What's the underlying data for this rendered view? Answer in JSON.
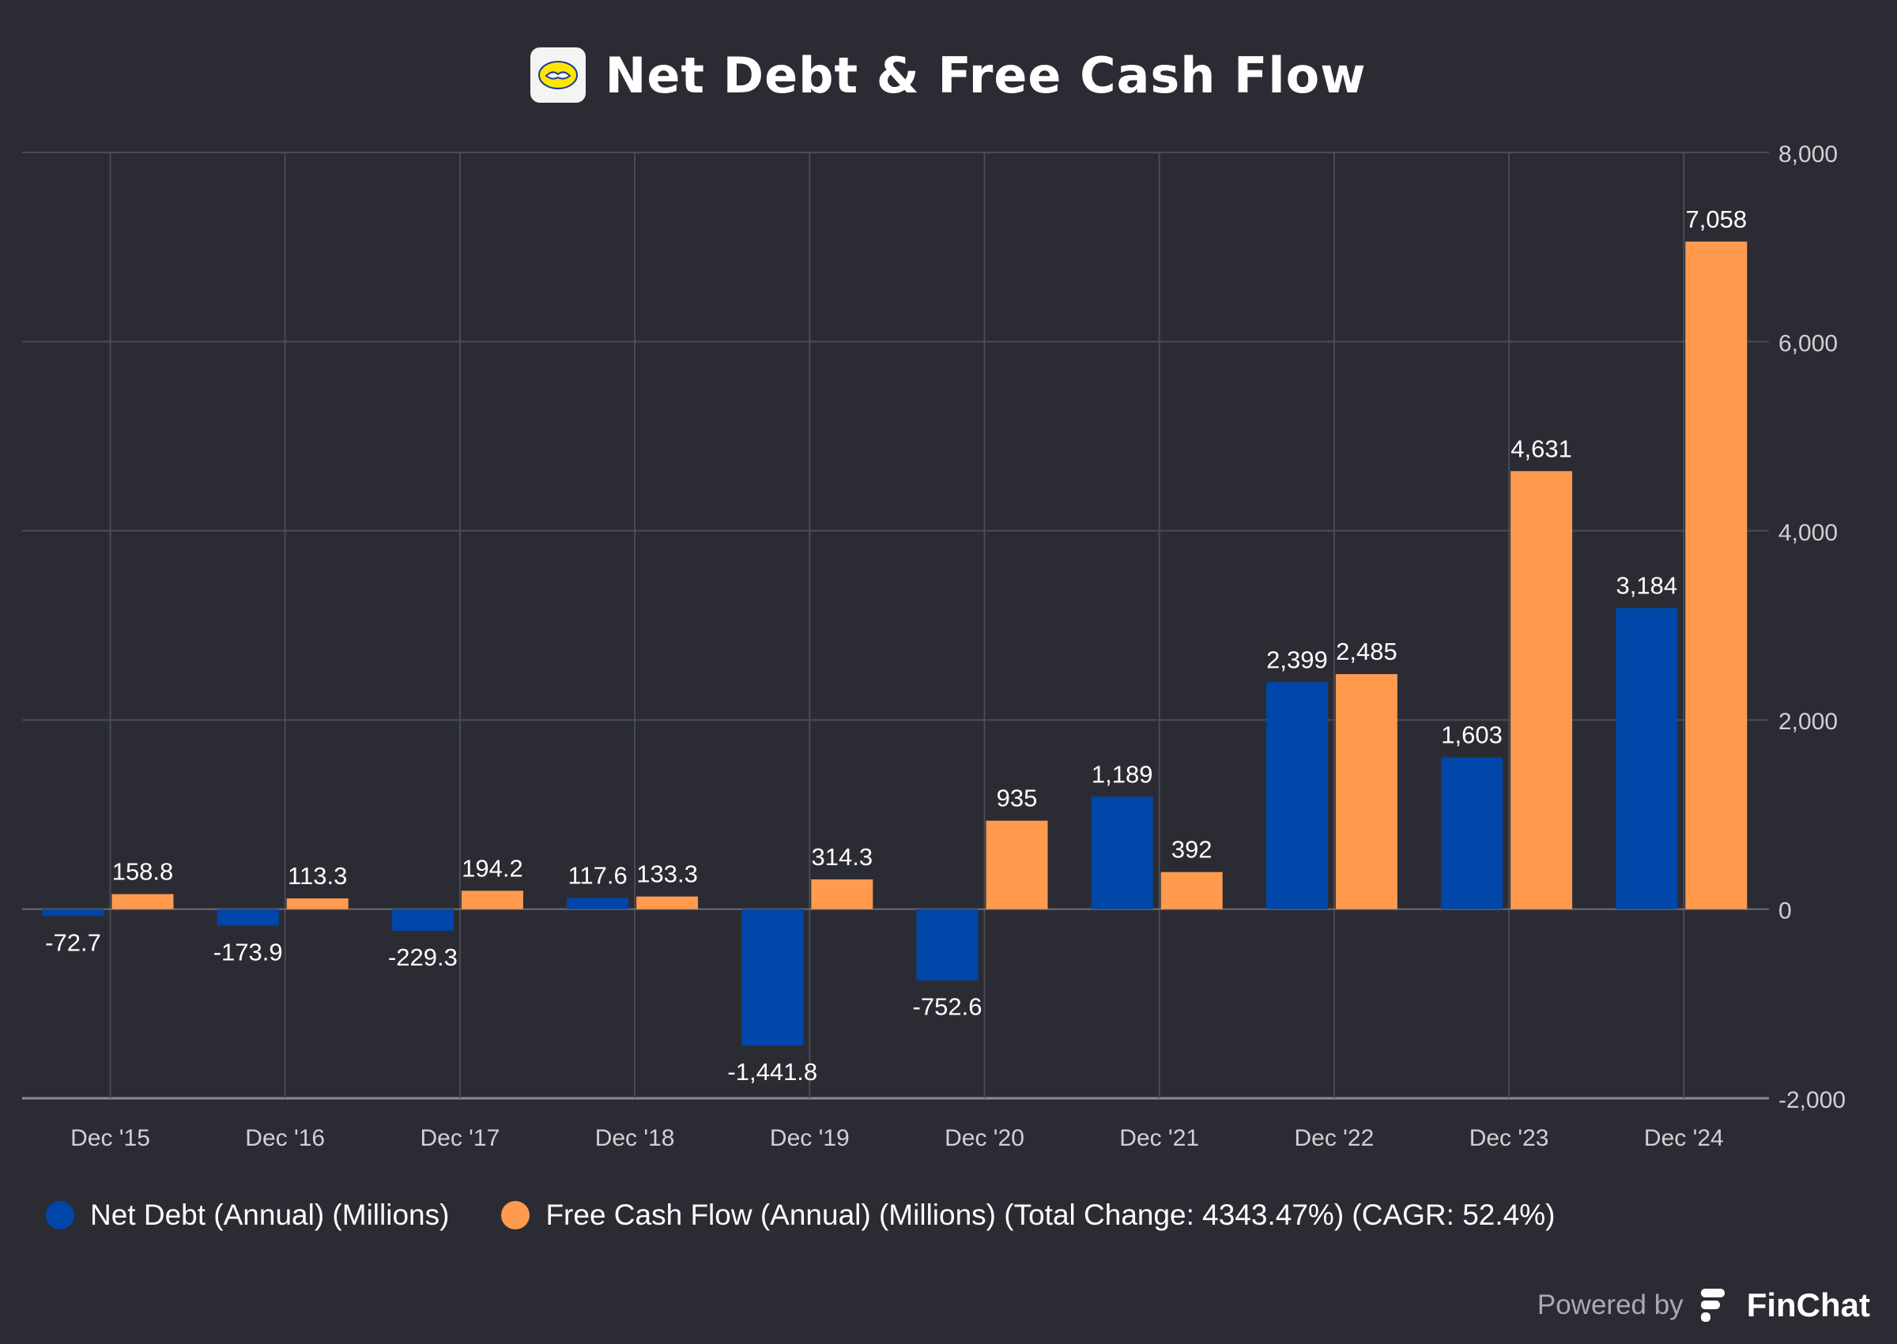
{
  "title": "Net Debt & Free Cash Flow",
  "logo_icon": "handshake-icon",
  "colors": {
    "background": "#2b2c33",
    "net_debt": "#0046a8",
    "free_cash_flow": "#ff9a4f",
    "grid": "#4a4b53",
    "axis_text": "#d0d1d6",
    "label_text": "#ffffff"
  },
  "legend": {
    "net_debt": "Net Debt (Annual) (Millions)",
    "free_cash_flow": "Free Cash Flow (Annual) (Millions) (Total Change: 4343.47%) (CAGR: 52.4%)"
  },
  "footer": {
    "powered_by": "Powered by",
    "brand": "FinChat",
    "brand_icon": "finchat-logo-icon"
  },
  "chart_data": {
    "type": "bar",
    "title": "Net Debt & Free Cash Flow",
    "categories": [
      "Dec '15",
      "Dec '16",
      "Dec '17",
      "Dec '18",
      "Dec '19",
      "Dec '20",
      "Dec '21",
      "Dec '22",
      "Dec '23",
      "Dec '24"
    ],
    "series": [
      {
        "name": "Net Debt (Annual) (Millions)",
        "values": [
          -72.7,
          -173.9,
          -229.3,
          117.6,
          -1441.8,
          -752.6,
          1189,
          2399,
          1603,
          3184
        ],
        "labels": [
          "-72.7",
          "-173.9",
          "-229.3",
          "117.6",
          "-1,441.8",
          "-752.6",
          "1,189",
          "2,399",
          "1,603",
          "3,184"
        ]
      },
      {
        "name": "Free Cash Flow (Annual) (Millions)",
        "values": [
          158.8,
          113.3,
          194.2,
          133.3,
          314.3,
          935,
          392,
          2485,
          4631,
          7058
        ],
        "labels": [
          "158.8",
          "113.3",
          "194.2",
          "133.3",
          "314.3",
          "935",
          "392",
          "2,485",
          "4,631",
          "7,058"
        ]
      }
    ],
    "ylim": [
      -2000,
      8000
    ],
    "yticks": [
      -2000,
      0,
      2000,
      4000,
      6000,
      8000
    ],
    "ytick_labels": [
      "-2,000",
      "0",
      "2,000",
      "4,000",
      "6,000",
      "8,000"
    ],
    "y_axis_side": "right",
    "grid": true,
    "legend_position": "bottom-left",
    "xlabel": "",
    "ylabel": ""
  }
}
